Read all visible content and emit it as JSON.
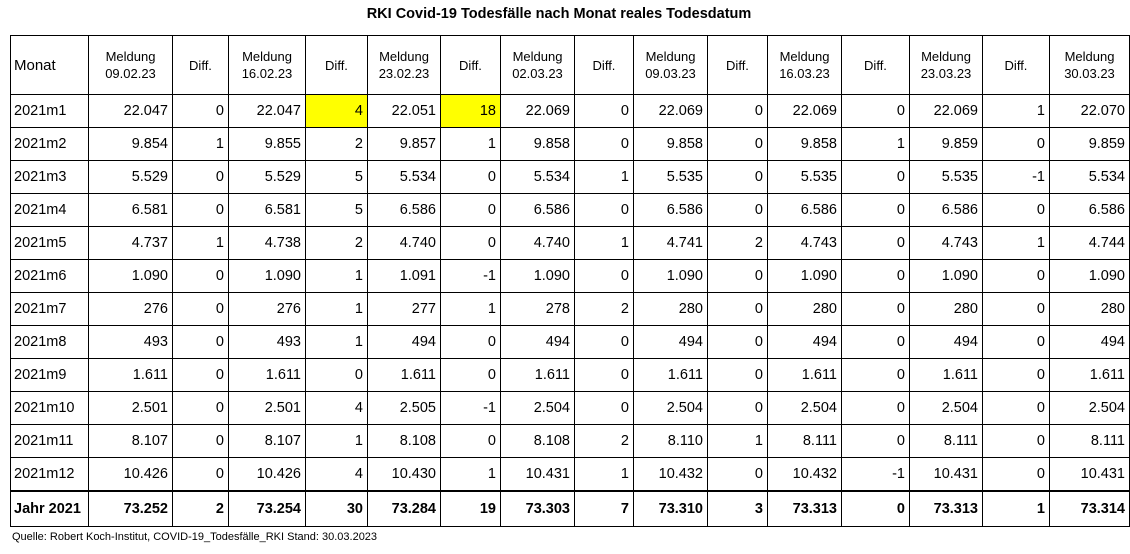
{
  "title": "RKI Covid-19 Todesfälle nach Monat reales Todesdatum",
  "headers": {
    "monat": "Monat",
    "meldung_label": "Meldung",
    "diff_label": "Diff.",
    "dates": [
      "09.02.23",
      "16.02.23",
      "23.02.23",
      "02.03.23",
      "09.03.23",
      "16.03.23",
      "23.03.23",
      "30.03.23"
    ]
  },
  "rows": [
    {
      "month": "2021m1",
      "cells": [
        "22.047",
        "0",
        "22.047",
        "4",
        "22.051",
        "18",
        "22.069",
        "0",
        "22.069",
        "0",
        "22.069",
        "0",
        "22.069",
        "1",
        "22.070"
      ]
    },
    {
      "month": "2021m2",
      "cells": [
        "9.854",
        "1",
        "9.855",
        "2",
        "9.857",
        "1",
        "9.858",
        "0",
        "9.858",
        "0",
        "9.858",
        "1",
        "9.859",
        "0",
        "9.859"
      ]
    },
    {
      "month": "2021m3",
      "cells": [
        "5.529",
        "0",
        "5.529",
        "5",
        "5.534",
        "0",
        "5.534",
        "1",
        "5.535",
        "0",
        "5.535",
        "0",
        "5.535",
        "-1",
        "5.534"
      ]
    },
    {
      "month": "2021m4",
      "cells": [
        "6.581",
        "0",
        "6.581",
        "5",
        "6.586",
        "0",
        "6.586",
        "0",
        "6.586",
        "0",
        "6.586",
        "0",
        "6.586",
        "0",
        "6.586"
      ]
    },
    {
      "month": "2021m5",
      "cells": [
        "4.737",
        "1",
        "4.738",
        "2",
        "4.740",
        "0",
        "4.740",
        "1",
        "4.741",
        "2",
        "4.743",
        "0",
        "4.743",
        "1",
        "4.744"
      ]
    },
    {
      "month": "2021m6",
      "cells": [
        "1.090",
        "0",
        "1.090",
        "1",
        "1.091",
        "-1",
        "1.090",
        "0",
        "1.090",
        "0",
        "1.090",
        "0",
        "1.090",
        "0",
        "1.090"
      ]
    },
    {
      "month": "2021m7",
      "cells": [
        "276",
        "0",
        "276",
        "1",
        "277",
        "1",
        "278",
        "2",
        "280",
        "0",
        "280",
        "0",
        "280",
        "0",
        "280"
      ]
    },
    {
      "month": "2021m8",
      "cells": [
        "493",
        "0",
        "493",
        "1",
        "494",
        "0",
        "494",
        "0",
        "494",
        "0",
        "494",
        "0",
        "494",
        "0",
        "494"
      ]
    },
    {
      "month": "2021m9",
      "cells": [
        "1.611",
        "0",
        "1.611",
        "0",
        "1.611",
        "0",
        "1.611",
        "0",
        "1.611",
        "0",
        "1.611",
        "0",
        "1.611",
        "0",
        "1.611"
      ]
    },
    {
      "month": "2021m10",
      "cells": [
        "2.501",
        "0",
        "2.501",
        "4",
        "2.505",
        "-1",
        "2.504",
        "0",
        "2.504",
        "0",
        "2.504",
        "0",
        "2.504",
        "0",
        "2.504"
      ]
    },
    {
      "month": "2021m11",
      "cells": [
        "8.107",
        "0",
        "8.107",
        "1",
        "8.108",
        "0",
        "8.108",
        "2",
        "8.110",
        "1",
        "8.111",
        "0",
        "8.111",
        "0",
        "8.111"
      ]
    },
    {
      "month": "2021m12",
      "cells": [
        "10.426",
        "0",
        "10.426",
        "4",
        "10.430",
        "1",
        "10.431",
        "1",
        "10.432",
        "0",
        "10.432",
        "-1",
        "10.431",
        "0",
        "10.431"
      ]
    }
  ],
  "total": {
    "month": "Jahr 2021",
    "cells": [
      "73.252",
      "2",
      "73.254",
      "30",
      "73.284",
      "19",
      "73.303",
      "7",
      "73.310",
      "3",
      "73.313",
      "0",
      "73.313",
      "1",
      "73.314"
    ]
  },
  "highlight_color": "#ffff00",
  "highlighted_cells": [
    {
      "row": 0,
      "col": 3
    },
    {
      "row": 0,
      "col": 5
    }
  ],
  "footer": "Quelle: Robert Koch-Institut, COVID-19_Todesfälle_RKI Stand: 30.03.2023"
}
